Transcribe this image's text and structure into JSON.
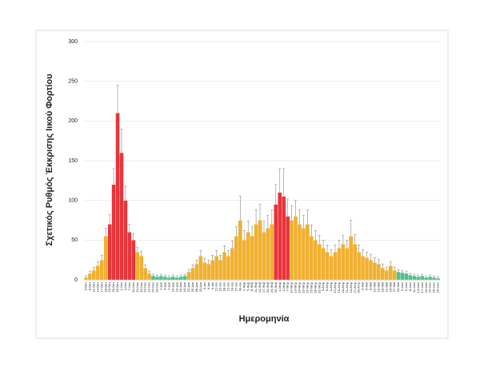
{
  "chart_data": {
    "type": "bar",
    "y_label": "Σχετικός Ρυθμός Έκκρισης Ιικού Φορτίου",
    "x_label": "Ημερομηνία",
    "categories": [
      "5-Οκτ",
      "8-Οκτ",
      "11-Οκτ",
      "14-Οκτ",
      "17-Οκτ",
      "20-Οκτ",
      "23-Οκτ",
      "26-Οκτ",
      "29-Οκτ",
      "1-Νοε",
      "4-Νοε",
      "7-Νοε",
      "10-Νοε",
      "13-Νοε",
      "16-Νοε",
      "19-Νοε",
      "22-Νοε",
      "25-Νοε",
      "28-Νοε",
      "1-Δεκ",
      "4-Δεκ",
      "7-Δεκ",
      "10-Δεκ",
      "13-Δεκ",
      "16-Δεκ",
      "19-Δεκ",
      "22-Δεκ",
      "25-Δεκ",
      "28-Δεκ",
      "31-Δεκ",
      "3-Ιαν",
      "6-Ιαν",
      "9-Ιαν",
      "12-Ιαν",
      "15-Ιαν",
      "18-Ιαν",
      "21-Ιαν",
      "24-Ιαν",
      "27-Ιαν",
      "30-Ιαν",
      "2-Φεβ",
      "5-Φεβ",
      "8-Φεβ",
      "11-Φεβ",
      "14-Φεβ",
      "17-Φεβ",
      "20-Φεβ",
      "23-Φεβ",
      "26-Φεβ",
      "1-Μαρ",
      "4-Μαρ",
      "7-Μαρ",
      "10-Μαρ",
      "13-Μαρ",
      "16-Μαρ",
      "19-Μαρ",
      "22-Μαρ",
      "25-Μαρ",
      "28-Μαρ",
      "31-Μαρ",
      "3-Απρ",
      "6-Απρ",
      "9-Απρ",
      "12-Απρ",
      "15-Απρ",
      "18-Απρ",
      "21-Απρ",
      "24-Απρ",
      "27-Απρ",
      "30-Απρ",
      "3-Μαϊ",
      "6-Μαϊ",
      "9-Μαϊ",
      "12-Μαϊ",
      "15-Μαϊ",
      "18-Μαϊ",
      "21-Μαϊ",
      "24-Μαϊ",
      "27-Μαϊ",
      "30-Μαϊ",
      "2-Ιουν",
      "5-Ιουν",
      "8-Ιουν",
      "11-Ιουν",
      "14-Ιουν",
      "17-Ιουν",
      "20-Ιουν",
      "23-Ιουν",
      "26-Ιουν",
      "29-Ιουν"
    ],
    "values": [
      3,
      8,
      12,
      18,
      25,
      55,
      70,
      120,
      210,
      160,
      100,
      60,
      50,
      35,
      30,
      15,
      8,
      5,
      4,
      5,
      4,
      3,
      4,
      3,
      4,
      5,
      10,
      15,
      20,
      30,
      22,
      20,
      25,
      30,
      25,
      35,
      30,
      40,
      55,
      75,
      50,
      60,
      55,
      70,
      75,
      60,
      65,
      70,
      95,
      110,
      105,
      80,
      75,
      80,
      70,
      65,
      70,
      55,
      50,
      45,
      40,
      35,
      30,
      35,
      40,
      45,
      40,
      55,
      45,
      35,
      30,
      28,
      25,
      22,
      20,
      15,
      12,
      18,
      12,
      10,
      9,
      8,
      6,
      5,
      4,
      5,
      3,
      4,
      3,
      2
    ],
    "errors": [
      2,
      3,
      4,
      5,
      6,
      10,
      12,
      20,
      35,
      30,
      18,
      10,
      8,
      6,
      6,
      4,
      3,
      2,
      2,
      2,
      2,
      2,
      2,
      2,
      2,
      2,
      3,
      4,
      5,
      7,
      5,
      5,
      6,
      7,
      6,
      8,
      7,
      9,
      12,
      30,
      12,
      14,
      12,
      18,
      20,
      14,
      16,
      18,
      25,
      30,
      35,
      22,
      18,
      20,
      18,
      16,
      18,
      14,
      12,
      11,
      10,
      9,
      8,
      9,
      10,
      11,
      10,
      20,
      12,
      9,
      8,
      7,
      7,
      6,
      6,
      5,
      4,
      5,
      4,
      3,
      3,
      3,
      2,
      2,
      2,
      2,
      2,
      2,
      2,
      2
    ],
    "bar_colors": [
      "#f0b030",
      "#f0b030",
      "#f0b030",
      "#f0b030",
      "#f0b030",
      "#f0b030",
      "#e8343a",
      "#e8343a",
      "#e8343a",
      "#e8343a",
      "#e8343a",
      "#e8343a",
      "#e8343a",
      "#f0b030",
      "#f0b030",
      "#f0b030",
      "#f0b030",
      "#4cc38a",
      "#4cc38a",
      "#4cc38a",
      "#4cc38a",
      "#4cc38a",
      "#4cc38a",
      "#4cc38a",
      "#4cc38a",
      "#4cc38a",
      "#f0b030",
      "#f0b030",
      "#f0b030",
      "#f0b030",
      "#f0b030",
      "#f0b030",
      "#f0b030",
      "#f0b030",
      "#f0b030",
      "#f0b030",
      "#f0b030",
      "#f0b030",
      "#f0b030",
      "#f0b030",
      "#f0b030",
      "#f0b030",
      "#f0b030",
      "#f0b030",
      "#f0b030",
      "#f0b030",
      "#f0b030",
      "#f0b030",
      "#e8343a",
      "#e8343a",
      "#e8343a",
      "#e8343a",
      "#f0b030",
      "#f0b030",
      "#f0b030",
      "#f0b030",
      "#f0b030",
      "#f0b030",
      "#f0b030",
      "#f0b030",
      "#f0b030",
      "#f0b030",
      "#f0b030",
      "#f0b030",
      "#f0b030",
      "#f0b030",
      "#f0b030",
      "#f0b030",
      "#f0b030",
      "#f0b030",
      "#f0b030",
      "#f0b030",
      "#f0b030",
      "#f0b030",
      "#f0b030",
      "#f0b030",
      "#f0b030",
      "#f0b030",
      "#f0b030",
      "#4cc38a",
      "#4cc38a",
      "#4cc38a",
      "#4cc38a",
      "#4cc38a",
      "#4cc38a",
      "#4cc38a",
      "#4cc38a",
      "#4cc38a",
      "#4cc38a",
      "#4cc38a"
    ],
    "ylim": [
      0,
      300
    ],
    "yticks": [
      0,
      50,
      100,
      150,
      200,
      250,
      300
    ],
    "grid": true
  }
}
